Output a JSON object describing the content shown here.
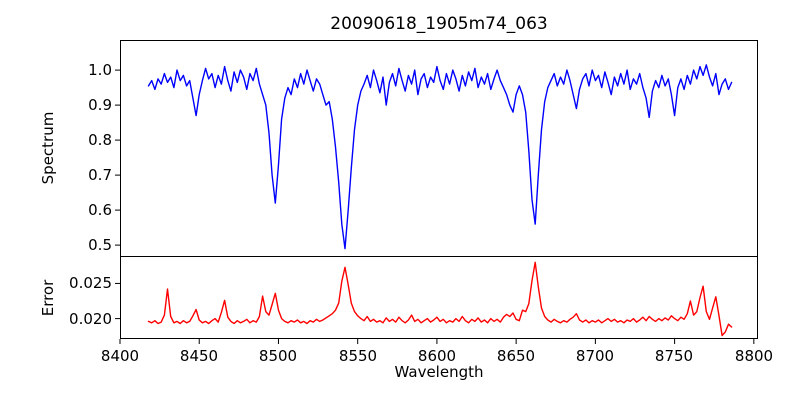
{
  "chart_data": {
    "type": "line",
    "title": "20090618_1905m74_063",
    "xlabel": "Wavelength",
    "frame_color": "#000000",
    "background_color": "#ffffff",
    "grid": false,
    "legend": "none",
    "xlim": [
      8400,
      8802
    ],
    "x_start": 8418,
    "x_step": 2,
    "xticks": [
      {
        "value": 8400,
        "label": "8400"
      },
      {
        "value": 8450,
        "label": "8450"
      },
      {
        "value": 8500,
        "label": "8500"
      },
      {
        "value": 8550,
        "label": "8550"
      },
      {
        "value": 8600,
        "label": "8600"
      },
      {
        "value": 8650,
        "label": "8650"
      },
      {
        "value": 8700,
        "label": "8700"
      },
      {
        "value": 8750,
        "label": "8750"
      },
      {
        "value": 8800,
        "label": "8800"
      }
    ],
    "panels": [
      {
        "name": "spectrum",
        "ylabel": "Spectrum",
        "color": "#0000ff",
        "ylim": [
          0.466,
          1.086
        ],
        "yticks": [
          {
            "value": 1.0,
            "label": "1.0"
          },
          {
            "value": 0.9,
            "label": "0.9"
          },
          {
            "value": 0.8,
            "label": "0.8"
          },
          {
            "value": 0.7,
            "label": "0.7"
          },
          {
            "value": 0.6,
            "label": "0.6"
          },
          {
            "value": 0.5,
            "label": "0.5"
          }
        ],
        "values": [
          0.955,
          0.97,
          0.945,
          0.975,
          0.96,
          0.99,
          0.965,
          0.98,
          0.95,
          1.0,
          0.97,
          0.985,
          0.955,
          0.97,
          0.92,
          0.87,
          0.93,
          0.97,
          1.005,
          0.975,
          0.99,
          0.95,
          0.985,
          0.96,
          1.01,
          0.97,
          0.94,
          0.995,
          0.965,
          1.0,
          0.98,
          0.945,
          0.99,
          0.97,
          1.005,
          0.96,
          0.93,
          0.9,
          0.82,
          0.7,
          0.62,
          0.73,
          0.86,
          0.92,
          0.95,
          0.93,
          0.975,
          0.95,
          0.99,
          0.96,
          1.0,
          0.97,
          0.94,
          0.975,
          0.96,
          0.93,
          0.9,
          0.91,
          0.86,
          0.78,
          0.68,
          0.56,
          0.49,
          0.6,
          0.72,
          0.83,
          0.9,
          0.94,
          0.96,
          0.985,
          0.95,
          1.0,
          0.97,
          0.935,
          0.98,
          0.9,
          0.965,
          0.99,
          0.955,
          1.005,
          0.97,
          0.94,
          0.985,
          0.96,
          1.0,
          0.93,
          0.975,
          0.99,
          0.95,
          0.98,
          0.965,
          1.01,
          0.97,
          0.945,
          0.99,
          0.96,
          1.0,
          0.975,
          0.94,
          0.985,
          0.955,
          0.995,
          0.97,
          1.005,
          0.95,
          0.98,
          0.96,
          0.99,
          0.945,
          0.975,
          1.0,
          0.97,
          0.95,
          0.93,
          0.9,
          0.88,
          0.93,
          0.955,
          0.93,
          0.88,
          0.77,
          0.63,
          0.56,
          0.7,
          0.83,
          0.91,
          0.95,
          0.97,
          0.99,
          0.955,
          0.98,
          0.96,
          1.0,
          0.97,
          0.93,
          0.89,
          0.945,
          0.975,
          0.99,
          0.955,
          1.0,
          0.97,
          0.985,
          0.95,
          0.995,
          0.965,
          0.93,
          0.98,
          0.955,
          0.99,
          0.96,
          1.0,
          0.945,
          0.975,
          0.96,
          0.99,
          0.95,
          0.92,
          0.865,
          0.94,
          0.97,
          0.95,
          0.985,
          0.955,
          0.975,
          0.93,
          0.87,
          0.95,
          0.975,
          0.945,
          0.985,
          0.96,
          1.0,
          0.975,
          1.01,
          0.985,
          1.015,
          0.98,
          0.955,
          0.99,
          0.93,
          0.96,
          0.975,
          0.945,
          0.965
        ]
      },
      {
        "name": "error",
        "ylabel": "Error",
        "color": "#ff0000",
        "ylim": [
          0.0171,
          0.0289
        ],
        "yticks": [
          {
            "value": 0.025,
            "label": "0.025"
          },
          {
            "value": 0.02,
            "label": "0.020"
          }
        ],
        "values": [
          0.0196,
          0.0194,
          0.0197,
          0.0193,
          0.0195,
          0.0205,
          0.0242,
          0.0203,
          0.0194,
          0.0196,
          0.0193,
          0.0197,
          0.0194,
          0.0196,
          0.0204,
          0.0213,
          0.0198,
          0.0194,
          0.0196,
          0.0193,
          0.0197,
          0.02,
          0.0195,
          0.0209,
          0.0226,
          0.0202,
          0.0196,
          0.0193,
          0.0197,
          0.0194,
          0.0196,
          0.0199,
          0.0194,
          0.0197,
          0.0195,
          0.0203,
          0.0232,
          0.021,
          0.0205,
          0.022,
          0.0236,
          0.0212,
          0.02,
          0.0196,
          0.0194,
          0.0197,
          0.0195,
          0.0198,
          0.0194,
          0.0196,
          0.0193,
          0.0197,
          0.0195,
          0.0199,
          0.0196,
          0.0198,
          0.0201,
          0.0204,
          0.0207,
          0.0212,
          0.0222,
          0.0253,
          0.0273,
          0.0248,
          0.0222,
          0.021,
          0.0204,
          0.02,
          0.0197,
          0.0203,
          0.0196,
          0.0199,
          0.0195,
          0.0197,
          0.0194,
          0.0201,
          0.0196,
          0.0199,
          0.0195,
          0.0202,
          0.0197,
          0.0194,
          0.0198,
          0.0205,
          0.0196,
          0.0199,
          0.0194,
          0.0197,
          0.02,
          0.0195,
          0.0198,
          0.0202,
          0.0196,
          0.0199,
          0.0194,
          0.0197,
          0.0195,
          0.02,
          0.0196,
          0.0203,
          0.0197,
          0.0194,
          0.0199,
          0.0196,
          0.0201,
          0.0195,
          0.0198,
          0.0194,
          0.02,
          0.0196,
          0.0199,
          0.0195,
          0.0202,
          0.0206,
          0.0203,
          0.0208,
          0.0199,
          0.0197,
          0.0212,
          0.021,
          0.0221,
          0.0254,
          0.028,
          0.0245,
          0.0215,
          0.0203,
          0.0198,
          0.0195,
          0.0199,
          0.0196,
          0.0194,
          0.0197,
          0.0195,
          0.0199,
          0.0202,
          0.0207,
          0.0198,
          0.0195,
          0.0198,
          0.0194,
          0.0197,
          0.0195,
          0.0198,
          0.0194,
          0.0197,
          0.02,
          0.0196,
          0.0199,
          0.0195,
          0.0197,
          0.0194,
          0.0198,
          0.0196,
          0.02,
          0.0195,
          0.0198,
          0.0202,
          0.0197,
          0.0203,
          0.0199,
          0.0196,
          0.02,
          0.0197,
          0.0201,
          0.0198,
          0.0204,
          0.02,
          0.0197,
          0.0202,
          0.0199,
          0.0207,
          0.0225,
          0.0205,
          0.021,
          0.023,
          0.0246,
          0.021,
          0.0199,
          0.0215,
          0.0231,
          0.0204,
          0.0176,
          0.0181,
          0.0192,
          0.0188
        ]
      }
    ]
  }
}
